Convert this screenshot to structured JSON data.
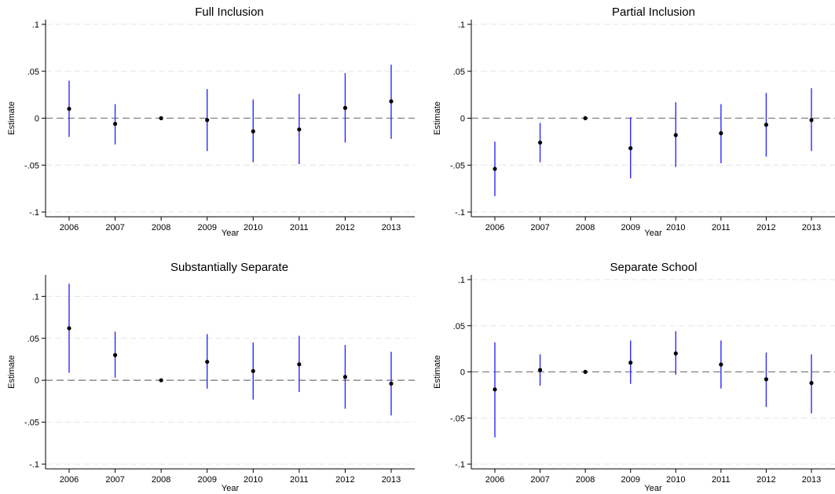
{
  "chart_data": [
    {
      "type": "scatter",
      "title": "Full Inclusion",
      "xlabel": "Year",
      "ylabel": "Estimate",
      "categories": [
        "2006",
        "2007",
        "2008",
        "2009",
        "2010",
        "2011",
        "2012",
        "2013"
      ],
      "estimates": [
        0.01,
        -0.006,
        0.0,
        -0.002,
        -0.014,
        -0.012,
        0.011,
        0.018
      ],
      "ci_low": [
        -0.02,
        -0.028,
        0.0,
        -0.035,
        -0.047,
        -0.049,
        -0.026,
        -0.022
      ],
      "ci_high": [
        0.04,
        0.015,
        0.0,
        0.031,
        0.02,
        0.026,
        0.048,
        0.057
      ],
      "ylim": [
        -0.1,
        0.1
      ],
      "yticks": [
        -0.1,
        -0.05,
        0,
        0.05,
        0.1
      ],
      "ytick_labels": [
        "-.1",
        "-.05",
        "0",
        ".05",
        ".1"
      ],
      "grid": true,
      "reference_line": 0
    },
    {
      "type": "scatter",
      "title": "Partial Inclusion",
      "xlabel": "Year",
      "ylabel": "Estimate",
      "categories": [
        "2006",
        "2007",
        "2008",
        "2009",
        "2010",
        "2011",
        "2012",
        "2013"
      ],
      "estimates": [
        -0.054,
        -0.026,
        0.0,
        -0.032,
        -0.018,
        -0.016,
        -0.007,
        -0.002
      ],
      "ci_low": [
        -0.083,
        -0.047,
        0.0,
        -0.064,
        -0.052,
        -0.048,
        -0.041,
        -0.035
      ],
      "ci_high": [
        -0.025,
        -0.005,
        0.0,
        0.001,
        0.017,
        0.015,
        0.027,
        0.032
      ],
      "ylim": [
        -0.1,
        0.1
      ],
      "yticks": [
        -0.1,
        -0.05,
        0,
        0.05,
        0.1
      ],
      "ytick_labels": [
        "-.1",
        "-.05",
        "0",
        ".05",
        ".1"
      ],
      "grid": true,
      "reference_line": 0
    },
    {
      "type": "scatter",
      "title": "Substantially Separate",
      "xlabel": "Year",
      "ylabel": "Estimate",
      "categories": [
        "2006",
        "2007",
        "2008",
        "2009",
        "2010",
        "2011",
        "2012",
        "2013"
      ],
      "estimates": [
        0.062,
        0.03,
        0.0,
        0.022,
        0.011,
        0.019,
        0.004,
        -0.004
      ],
      "ci_low": [
        0.009,
        0.003,
        0.0,
        -0.01,
        -0.023,
        -0.014,
        -0.034,
        -0.042
      ],
      "ci_high": [
        0.115,
        0.058,
        0.0,
        0.055,
        0.045,
        0.053,
        0.042,
        0.034
      ],
      "ylim": [
        -0.1,
        0.12
      ],
      "yticks": [
        -0.1,
        -0.05,
        0,
        0.05,
        0.1
      ],
      "ytick_labels": [
        "-.1",
        "-.05",
        "0",
        ".05",
        ".1"
      ],
      "grid": true,
      "reference_line": 0
    },
    {
      "type": "scatter",
      "title": "Separate School",
      "xlabel": "Year",
      "ylabel": "Estimate",
      "categories": [
        "2006",
        "2007",
        "2008",
        "2009",
        "2010",
        "2011",
        "2012",
        "2013"
      ],
      "estimates": [
        -0.019,
        0.002,
        0.0,
        0.01,
        0.02,
        0.008,
        -0.008,
        -0.012
      ],
      "ci_low": [
        -0.071,
        -0.015,
        0.0,
        -0.013,
        -0.003,
        -0.018,
        -0.038,
        -0.045
      ],
      "ci_high": [
        0.032,
        0.019,
        0.0,
        0.034,
        0.044,
        0.034,
        0.021,
        0.019
      ],
      "ylim": [
        -0.1,
        0.1
      ],
      "yticks": [
        -0.1,
        -0.05,
        0,
        0.05,
        0.1
      ],
      "ytick_labels": [
        "-.1",
        "-.05",
        "0",
        ".05",
        ".1"
      ],
      "grid": true,
      "reference_line": 0
    }
  ],
  "colors": {
    "ci_line": "#2b2bff",
    "point": "#000000",
    "grid": "#e6e6e6",
    "reference_line": "#808080",
    "axis": "#000000"
  }
}
